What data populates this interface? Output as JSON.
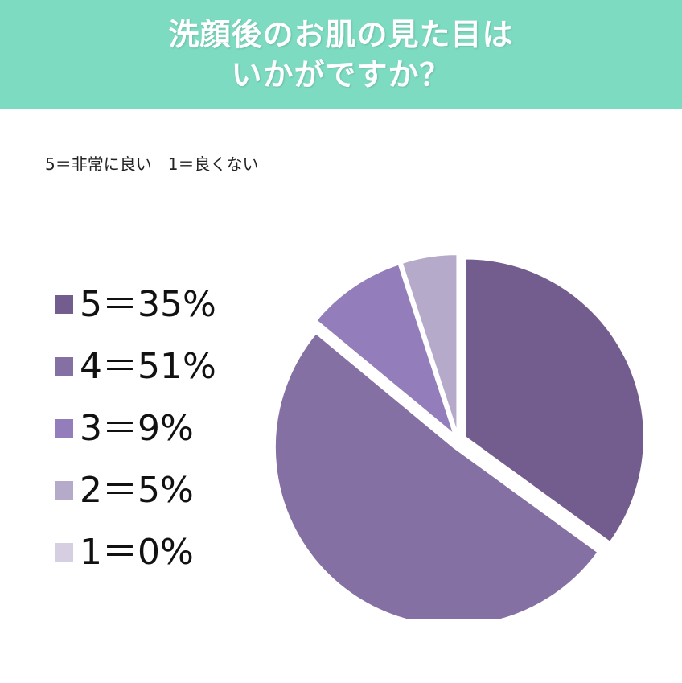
{
  "header": {
    "title_line1": "洗顔後のお肌の見た目は",
    "title_line2": "いかがですか？",
    "background_color": "#7ddbc1"
  },
  "scale_note": "5＝非常に良い　1＝良くない",
  "chart_data": {
    "type": "pie",
    "title": "洗顔後のお肌の見た目はいかがですか？",
    "legend_position": "left",
    "categories": [
      "5",
      "4",
      "3",
      "2",
      "1"
    ],
    "values": [
      35,
      51,
      9,
      5,
      0
    ],
    "unit": "%",
    "legend": [
      {
        "label": "5＝35%",
        "color": "#725d8e"
      },
      {
        "label": "4＝51%",
        "color": "#8470a3"
      },
      {
        "label": "3＝9%",
        "color": "#937dba"
      },
      {
        "label": "2＝5%",
        "color": "#b5aac9"
      },
      {
        "label": "1＝0%",
        "color": "#d6cfe2"
      }
    ]
  }
}
